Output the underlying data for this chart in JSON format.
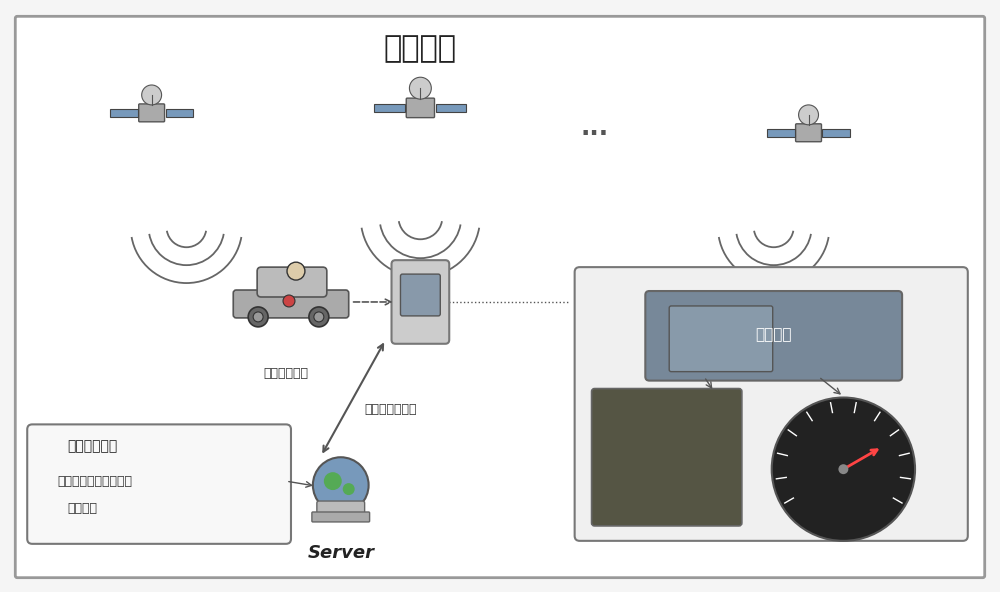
{
  "title": "北斗卫星",
  "bg_color": "#f0f0f0",
  "border_color": "#888888",
  "label_road_congestion": "路况拥堵情况",
  "label_position_speed": "位置、速度信息",
  "label_server": "Server",
  "label_model_title": "路况拥堵模型",
  "label_model_desc1": "适时通过路况特征计算",
  "label_model_desc2": "拥堵情况",
  "label_vehicle_terminal": "车载终端",
  "dots": "...",
  "fig_width": 10.0,
  "fig_height": 5.92
}
